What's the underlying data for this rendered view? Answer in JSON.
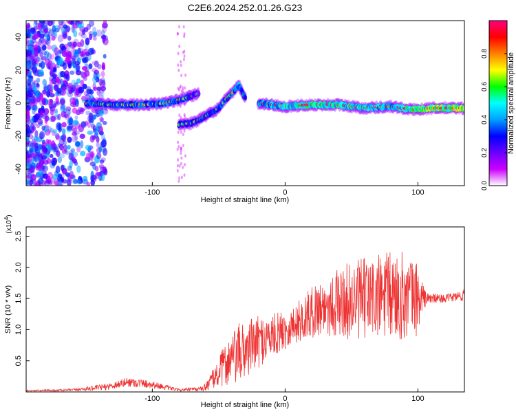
{
  "title": "C2E6.2024.252.01.26.G23",
  "chart_data": [
    {
      "type": "heatmap",
      "title": "C2E6.2024.252.01.26.G23",
      "xlabel": "Height of straight line (km)",
      "ylabel": "Frequency (Hz)",
      "xlim": [
        -195,
        135
      ],
      "ylim": [
        -50,
        50
      ],
      "xticks": [
        -100,
        0,
        100
      ],
      "yticks": [
        -40,
        -20,
        0,
        20,
        40
      ],
      "grid": false,
      "colorbar": {
        "label": "Normalized spectral amplitude",
        "range": [
          0,
          1
        ],
        "ticks": [
          "0.0",
          "0.2",
          "0.4",
          "0.6",
          "0.8"
        ],
        "colormap": [
          "#ffffff",
          "#cc00ff",
          "#6a00ff",
          "#0000ff",
          "#00a0ff",
          "#00ffff",
          "#00ff00",
          "#ffff00",
          "#ff8000",
          "#ff0000",
          "#ff0080"
        ]
      },
      "ridge": [
        {
          "x": -150,
          "f": 0,
          "amp": 0.55
        },
        {
          "x": -130,
          "f": -1,
          "amp": 0.5
        },
        {
          "x": -110,
          "f": -1,
          "amp": 0.55
        },
        {
          "x": -90,
          "f": 0,
          "amp": 0.55
        },
        {
          "x": -75,
          "f": 3,
          "amp": 0.5
        },
        {
          "x": -65,
          "f": 6,
          "amp": 0.3
        },
        {
          "x": -80,
          "f": -13,
          "amp": 0.4
        },
        {
          "x": -70,
          "f": -12,
          "amp": 0.45
        },
        {
          "x": -60,
          "f": -8,
          "amp": 0.45
        },
        {
          "x": -50,
          "f": -3,
          "amp": 0.5
        },
        {
          "x": -45,
          "f": 2,
          "amp": 0.5
        },
        {
          "x": -40,
          "f": 6,
          "amp": 0.55
        },
        {
          "x": -35,
          "f": 11,
          "amp": 0.6
        },
        {
          "x": -30,
          "f": 3,
          "amp": 0.45
        },
        {
          "x": -20,
          "f": 0,
          "amp": 0.6
        },
        {
          "x": 0,
          "f": -2,
          "amp": 0.7
        },
        {
          "x": 20,
          "f": -1,
          "amp": 0.8
        },
        {
          "x": 40,
          "f": -1,
          "amp": 0.75
        },
        {
          "x": 60,
          "f": -3,
          "amp": 0.7
        },
        {
          "x": 80,
          "f": -2,
          "amp": 0.65
        },
        {
          "x": 95,
          "f": -4,
          "amp": 0.85
        },
        {
          "x": 110,
          "f": -3,
          "amp": 0.95
        },
        {
          "x": 135,
          "f": -3,
          "amp": 0.95
        }
      ]
    },
    {
      "type": "line",
      "xlabel": "Height of straight line (km)",
      "ylabel": "SNR (10 * v/v)",
      "y_multiplier": "(x10^4)",
      "xlim": [
        -195,
        135
      ],
      "ylim": [
        0,
        2.65
      ],
      "xticks": [
        -100,
        0,
        100
      ],
      "yticks": [
        0.5,
        1.0,
        1.5,
        2.0,
        2.5
      ],
      "grid": false,
      "color": "#ee3333",
      "envelope": [
        {
          "x": -195,
          "mean": 0.02,
          "amp": 0.01
        },
        {
          "x": -160,
          "mean": 0.03,
          "amp": 0.02
        },
        {
          "x": -135,
          "mean": 0.08,
          "amp": 0.05
        },
        {
          "x": -118,
          "mean": 0.16,
          "amp": 0.08
        },
        {
          "x": -100,
          "mean": 0.12,
          "amp": 0.06
        },
        {
          "x": -80,
          "mean": 0.03,
          "amp": 0.02
        },
        {
          "x": -62,
          "mean": 0.05,
          "amp": 0.04
        },
        {
          "x": -52,
          "mean": 0.25,
          "amp": 0.2
        },
        {
          "x": -45,
          "mean": 0.45,
          "amp": 0.35
        },
        {
          "x": -35,
          "mean": 0.6,
          "amp": 0.5
        },
        {
          "x": -25,
          "mean": 0.75,
          "amp": 0.45
        },
        {
          "x": -10,
          "mean": 0.9,
          "amp": 0.35
        },
        {
          "x": 5,
          "mean": 1.05,
          "amp": 0.3
        },
        {
          "x": 25,
          "mean": 1.35,
          "amp": 0.45
        },
        {
          "x": 45,
          "mean": 1.45,
          "amp": 0.6
        },
        {
          "x": 65,
          "mean": 1.5,
          "amp": 0.7
        },
        {
          "x": 85,
          "mean": 1.55,
          "amp": 0.75
        },
        {
          "x": 100,
          "mean": 1.5,
          "amp": 0.6
        },
        {
          "x": 106,
          "mean": 1.5,
          "amp": 0.1
        },
        {
          "x": 120,
          "mean": 1.5,
          "amp": 0.06
        },
        {
          "x": 135,
          "mean": 1.55,
          "amp": 0.1
        }
      ]
    }
  ]
}
